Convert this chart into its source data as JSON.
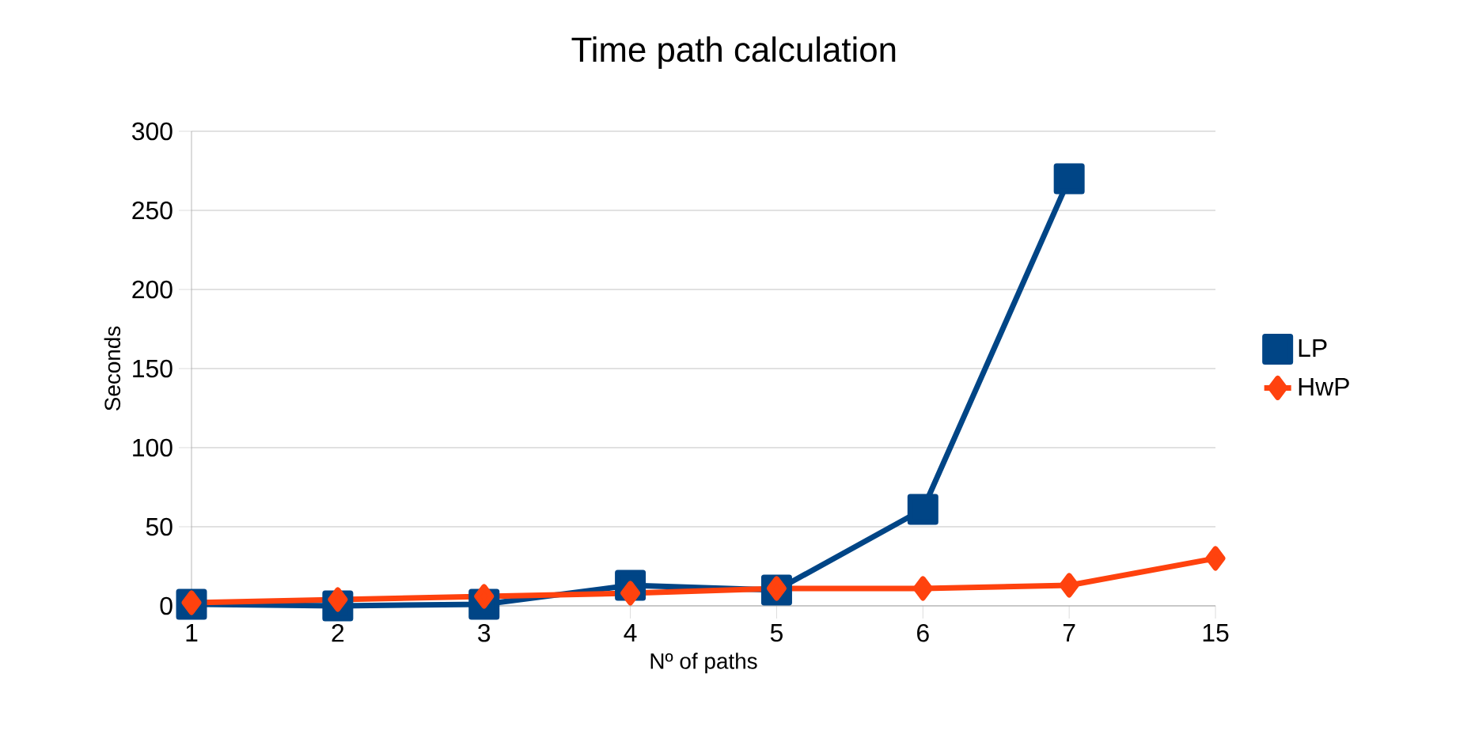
{
  "chart_data": {
    "type": "line",
    "title": "Time path calculation",
    "xlabel": "Nº of paths",
    "ylabel": "Seconds",
    "categories": [
      "1",
      "2",
      "3",
      "4",
      "5",
      "6",
      "7",
      "15"
    ],
    "series": [
      {
        "name": "LP",
        "color": "#004586",
        "marker": "square",
        "values": [
          1,
          0,
          1,
          13,
          10,
          61,
          270,
          null
        ]
      },
      {
        "name": "HwP",
        "color": "#ff420e",
        "marker": "diamond",
        "values": [
          2,
          4,
          6,
          8,
          11,
          11,
          13,
          30
        ]
      }
    ],
    "ylim": [
      0,
      300
    ],
    "yticks": [
      0,
      50,
      100,
      150,
      200,
      250,
      300
    ],
    "grid": "y",
    "legend": "right"
  }
}
